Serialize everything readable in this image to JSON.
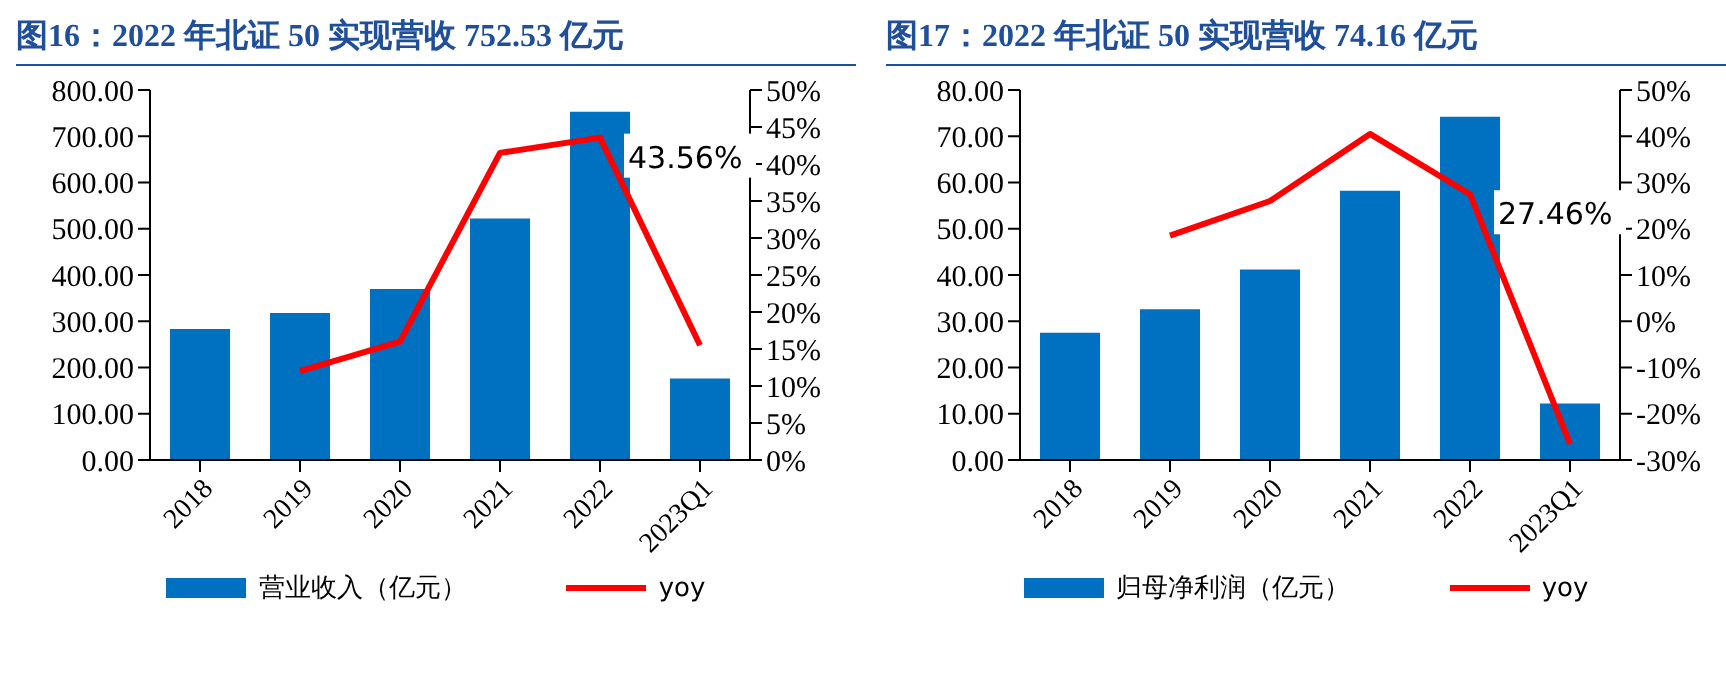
{
  "chart_data": [
    {
      "type": "bar",
      "title": "图16：2022 年北证 50 实现营收 752.53 亿元",
      "categories": [
        "2018",
        "2019",
        "2020",
        "2021",
        "2022",
        "2023Q1"
      ],
      "series": [
        {
          "name": "营业收入（亿元）",
          "color": "#0070c0",
          "values": [
            283,
            318,
            370,
            522,
            753,
            176
          ]
        },
        {
          "name": "yoy",
          "type": "line",
          "axis": "y2",
          "color": "#ff0000",
          "values": [
            null,
            12,
            16,
            41.5,
            43.56,
            15.5
          ],
          "value_labels": [
            null,
            null,
            null,
            null,
            "43.56%",
            null
          ]
        }
      ],
      "ylim": [
        0,
        800
      ],
      "yticks": [
        {
          "value": 0,
          "label": "0.00"
        },
        {
          "value": 100,
          "label": "100.00"
        },
        {
          "value": 200,
          "label": "200.00"
        },
        {
          "value": 300,
          "label": "300.00"
        },
        {
          "value": 400,
          "label": "400.00"
        },
        {
          "value": 500,
          "label": "500.00"
        },
        {
          "value": 600,
          "label": "600.00"
        },
        {
          "value": 700,
          "label": "700.00"
        },
        {
          "value": 800,
          "label": "800.00"
        }
      ],
      "y2lim": [
        0,
        50
      ],
      "y2ticks": [
        {
          "value": 0,
          "label": "0%"
        },
        {
          "value": 5,
          "label": "5%"
        },
        {
          "value": 10,
          "label": "10%"
        },
        {
          "value": 15,
          "label": "15%"
        },
        {
          "value": 20,
          "label": "20%"
        },
        {
          "value": 25,
          "label": "25%"
        },
        {
          "value": 30,
          "label": "30%"
        },
        {
          "value": 35,
          "label": "35%"
        },
        {
          "value": 40,
          "label": "40%"
        },
        {
          "value": 45,
          "label": "45%"
        },
        {
          "value": 50,
          "label": "50%"
        }
      ],
      "legend": "bottom",
      "grid": false,
      "marker": "none"
    },
    {
      "type": "bar",
      "title": "图17：2022 年北证 50 实现营收 74.16 亿元",
      "categories": [
        "2018",
        "2019",
        "2020",
        "2021",
        "2022",
        "2023Q1"
      ],
      "series": [
        {
          "name": "归母净利润（亿元）",
          "color": "#0070c0",
          "values": [
            27.5,
            32.6,
            41.2,
            58.2,
            74.2,
            12.2
          ]
        },
        {
          "name": "yoy",
          "type": "line",
          "axis": "y2",
          "color": "#ff0000",
          "values": [
            null,
            18.5,
            26,
            40.5,
            27.46,
            -26.5
          ],
          "value_labels": [
            null,
            null,
            null,
            null,
            "27.46%",
            null
          ]
        }
      ],
      "ylim": [
        0,
        80
      ],
      "yticks": [
        {
          "value": 0,
          "label": "0.00"
        },
        {
          "value": 10,
          "label": "10.00"
        },
        {
          "value": 20,
          "label": "20.00"
        },
        {
          "value": 30,
          "label": "30.00"
        },
        {
          "value": 40,
          "label": "40.00"
        },
        {
          "value": 50,
          "label": "50.00"
        },
        {
          "value": 60,
          "label": "60.00"
        },
        {
          "value": 70,
          "label": "70.00"
        },
        {
          "value": 80,
          "label": "80.00"
        }
      ],
      "y2lim": [
        -30,
        50
      ],
      "y2ticks": [
        {
          "value": -30,
          "label": "-30%"
        },
        {
          "value": -20,
          "label": "-20%"
        },
        {
          "value": -10,
          "label": "-10%"
        },
        {
          "value": 0,
          "label": "0%"
        },
        {
          "value": 10,
          "label": "10%"
        },
        {
          "value": 20,
          "label": "20%"
        },
        {
          "value": 30,
          "label": "30%"
        },
        {
          "value": 40,
          "label": "40%"
        },
        {
          "value": 50,
          "label": "50%"
        }
      ],
      "legend": "bottom",
      "grid": false,
      "marker": "none"
    }
  ]
}
